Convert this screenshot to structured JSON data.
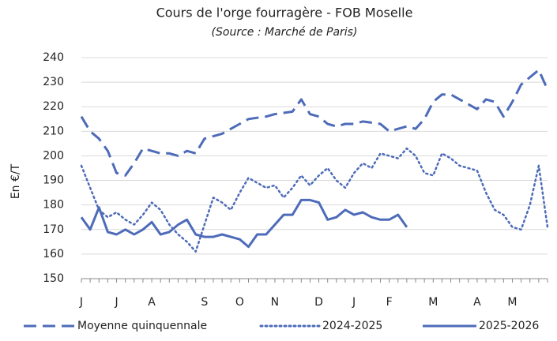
{
  "chart_data": {
    "type": "line",
    "title": "Cours de l'orge fourragère - FOB Moselle",
    "subtitle": "(Source : Marché de Paris)",
    "y_label": "En €/T",
    "categories": [
      "J",
      null,
      null,
      null,
      "J",
      null,
      null,
      null,
      "A",
      null,
      null,
      null,
      null,
      null,
      "S",
      null,
      null,
      null,
      "O",
      null,
      null,
      null,
      "N",
      null,
      null,
      null,
      null,
      "D",
      null,
      null,
      null,
      "J",
      null,
      null,
      null,
      "F",
      null,
      null,
      null,
      null,
      "M",
      null,
      null,
      null,
      null,
      "A",
      null,
      null,
      null,
      "M",
      null,
      null,
      null,
      null
    ],
    "series": [
      {
        "name": "Moyenne quinquennale",
        "color": "#4d6bb8",
        "style": "dashed",
        "values": [
          216,
          210,
          207,
          202,
          193,
          192,
          197,
          203,
          202,
          201,
          201,
          200,
          202,
          201,
          207,
          208,
          209,
          211,
          213,
          215,
          215.5,
          216,
          217,
          217.5,
          218,
          223,
          217,
          216,
          213,
          212,
          213,
          213,
          214,
          213.5,
          213,
          210,
          211,
          212,
          211,
          215,
          222,
          225,
          225,
          223,
          221,
          219,
          223,
          222,
          216,
          222,
          229,
          232,
          235,
          227
        ]
      },
      {
        "name": "2024-2025",
        "color": "#4d6bb8",
        "style": "dotted",
        "values": [
          196,
          187,
          178,
          175,
          177,
          174,
          172,
          176,
          181,
          178,
          172,
          168,
          165,
          161,
          172,
          183,
          181,
          178,
          185,
          191,
          189,
          187,
          188,
          183,
          187,
          192,
          188,
          192,
          195,
          190,
          187,
          193,
          197,
          195,
          201,
          200,
          199,
          203,
          200,
          193,
          192,
          201,
          199,
          196,
          195,
          194,
          185,
          178,
          176,
          171,
          170,
          180,
          196,
          171
        ]
      },
      {
        "name": "2025-2026",
        "color": "#4d6bb8",
        "style": "solid",
        "values": [
          175,
          170,
          179,
          169,
          168,
          170,
          168,
          170,
          173,
          168,
          169,
          172,
          174,
          168,
          167,
          167,
          168,
          167,
          166,
          163,
          168,
          168,
          172,
          176,
          176,
          182,
          182,
          181,
          174,
          175,
          178,
          176,
          177,
          175,
          174,
          174,
          176,
          171,
          null,
          null,
          null,
          null,
          null,
          null,
          null,
          null,
          null,
          null,
          null,
          null,
          null,
          null,
          null,
          null
        ]
      }
    ],
    "ylim": [
      150,
      240
    ],
    "yticks": [
      150,
      160,
      170,
      180,
      190,
      200,
      210,
      220,
      230,
      240
    ],
    "grid": true,
    "legend": "bottom"
  }
}
